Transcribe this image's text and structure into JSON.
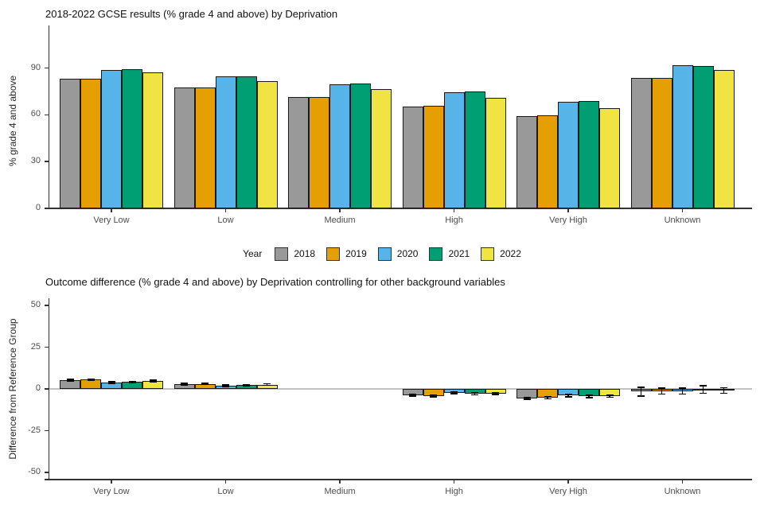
{
  "figure": {
    "background": "#ffffff"
  },
  "legend": {
    "title": "Year",
    "items": [
      {
        "label": "2018",
        "color": "#999999"
      },
      {
        "label": "2019",
        "color": "#E69F00"
      },
      {
        "label": "2020",
        "color": "#56B4E9"
      },
      {
        "label": "2021",
        "color": "#009E73"
      },
      {
        "label": "2022",
        "color": "#F0E442"
      }
    ]
  },
  "chart_data": [
    {
      "id": "gcse-results-by-deprivation",
      "type": "bar",
      "title": "2018-2022 GCSE results (% grade 4 and above) by Deprivation",
      "xlabel": "",
      "ylabel": "% grade 4 and above",
      "categories": [
        "Very Low",
        "Low",
        "Medium",
        "High",
        "Very High",
        "Unknown"
      ],
      "yticks": [
        0,
        30,
        60,
        90
      ],
      "ylim": [
        0,
        117
      ],
      "grid": false,
      "legend_position": "shared-below-panel",
      "series": [
        {
          "name": "2018",
          "color": "#999999",
          "values": [
            83,
            77.5,
            71.5,
            65.5,
            59,
            83.5
          ]
        },
        {
          "name": "2019",
          "color": "#E69F00",
          "values": [
            83,
            77.5,
            71.5,
            66,
            59.5,
            83.5
          ]
        },
        {
          "name": "2020",
          "color": "#56B4E9",
          "values": [
            89,
            84.5,
            79.5,
            74.5,
            68.5,
            92
          ]
        },
        {
          "name": "2021",
          "color": "#009E73",
          "values": [
            89.5,
            84.5,
            80,
            75,
            69,
            91.5
          ]
        },
        {
          "name": "2022",
          "color": "#F0E442",
          "values": [
            87,
            81.5,
            76.5,
            71,
            64.5,
            89
          ]
        }
      ]
    },
    {
      "id": "outcome-difference-by-deprivation",
      "type": "bar",
      "title": "Outcome difference (% grade 4 and above) by Deprivation controlling for other background variables",
      "xlabel": "",
      "ylabel": "Difference from Reference Group",
      "categories": [
        "Very Low",
        "Low",
        "Medium",
        "High",
        "Very High",
        "Unknown"
      ],
      "yticks": [
        50,
        25,
        0,
        -25,
        -50
      ],
      "ylim": [
        -54,
        54
      ],
      "grid": false,
      "zero_reference_line": true,
      "series": [
        {
          "name": "2018",
          "color": "#999999",
          "values": [
            5.3,
            2.9,
            null,
            -3.7,
            -5.6,
            -1.6
          ],
          "errors": [
            0.5,
            0.4,
            null,
            0.6,
            0.7,
            2.6
          ]
        },
        {
          "name": "2019",
          "color": "#E69F00",
          "values": [
            5.5,
            3.0,
            null,
            -4.1,
            -5.3,
            -1.3
          ],
          "errors": [
            0.5,
            0.4,
            null,
            0.6,
            0.7,
            1.7
          ]
        },
        {
          "name": "2020",
          "color": "#56B4E9",
          "values": [
            3.7,
            1.9,
            null,
            -2.3,
            -4.0,
            -1.3
          ],
          "errors": [
            0.5,
            0.4,
            null,
            0.6,
            0.7,
            1.7
          ]
        },
        {
          "name": "2021",
          "color": "#009E73",
          "values": [
            4.1,
            2.3,
            null,
            -2.9,
            -4.5,
            -0.3
          ],
          "errors": [
            0.5,
            0.4,
            null,
            0.6,
            0.7,
            2.2
          ]
        },
        {
          "name": "2022",
          "color": "#F0E442",
          "values": [
            4.7,
            2.6,
            null,
            -2.8,
            -4.4,
            -0.9
          ],
          "errors": [
            0.5,
            0.5,
            null,
            0.6,
            0.7,
            1.7
          ]
        }
      ]
    }
  ]
}
